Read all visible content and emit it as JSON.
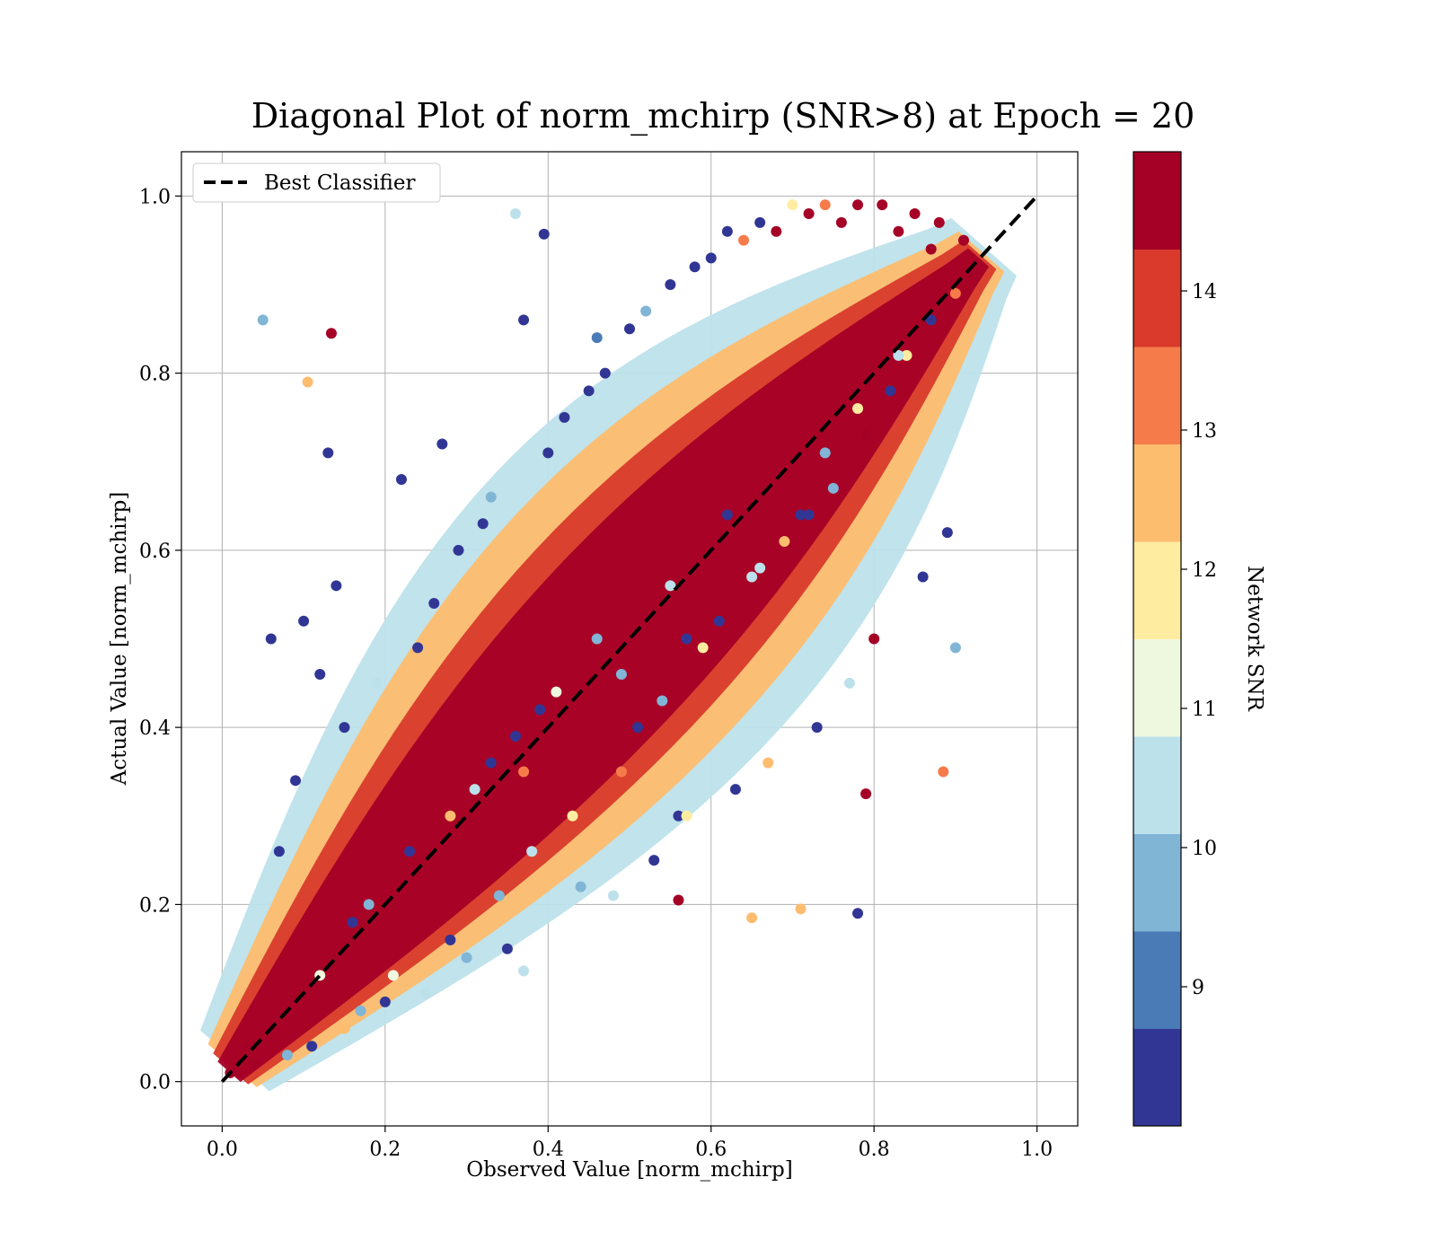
{
  "chart_data": {
    "type": "scatter",
    "title": "Diagonal Plot of norm_mchirp (SNR>8) at Epoch = 20",
    "xlabel": "Observed Value [norm_mchirp]",
    "ylabel": "Actual Value [norm_mchirp]",
    "xlim": [
      -0.05,
      1.05
    ],
    "ylim": [
      -0.05,
      1.05
    ],
    "xticks": [
      "0.0",
      "0.2",
      "0.4",
      "0.6",
      "0.8",
      "1.0"
    ],
    "yticks": [
      "0.0",
      "0.2",
      "0.4",
      "0.6",
      "0.8",
      "1.0"
    ],
    "grid": true,
    "legend": {
      "position": "top-left",
      "entries": [
        "Best Classifier"
      ]
    },
    "reference_line": {
      "name": "Best Classifier",
      "style": "dashed",
      "color": "#000000",
      "x": [
        0,
        1
      ],
      "y": [
        0,
        1
      ]
    },
    "colorbar": {
      "label": "Network SNR",
      "range": [
        8,
        15
      ],
      "ticks": [
        "9",
        "10",
        "11",
        "12",
        "13",
        "14"
      ],
      "bins": [
        {
          "from": 8.0,
          "to": 8.7,
          "color": "#313695"
        },
        {
          "from": 8.7,
          "to": 9.4,
          "color": "#4a7bb7"
        },
        {
          "from": 9.4,
          "to": 10.1,
          "color": "#80b5d6"
        },
        {
          "from": 10.1,
          "to": 10.8,
          "color": "#bde1eb"
        },
        {
          "from": 10.8,
          "to": 11.5,
          "color": "#eef8df"
        },
        {
          "from": 11.5,
          "to": 12.2,
          "color": "#feeca0"
        },
        {
          "from": 12.2,
          "to": 12.9,
          "color": "#fdbd6f"
        },
        {
          "from": 12.9,
          "to": 13.6,
          "color": "#f57c4a"
        },
        {
          "from": 13.6,
          "to": 14.3,
          "color": "#d93a2b"
        },
        {
          "from": 14.3,
          "to": 15.0,
          "color": "#a50026"
        }
      ]
    },
    "series": [
      {
        "x": [
          0.05,
          0.134,
          0.105,
          0.13,
          0.36,
          0.395,
          0.37,
          0.46,
          0.37,
          0.56,
          0.78,
          0.885,
          0.79,
          0.9,
          0.65,
          0.71,
          0.56,
          0.48,
          0.12,
          0.22,
          0.27,
          0.1,
          0.06,
          0.37,
          0.07,
          0.14,
          0.24,
          0.32,
          0.4,
          0.45,
          0.5,
          0.55,
          0.58,
          0.62,
          0.66,
          0.7,
          0.74,
          0.78,
          0.81,
          0.85,
          0.88,
          0.91,
          0.09,
          0.15,
          0.19,
          0.26,
          0.29,
          0.33,
          0.42,
          0.47,
          0.52,
          0.6,
          0.64,
          0.68,
          0.72,
          0.76,
          0.83,
          0.87,
          0.3,
          0.35,
          0.44,
          0.53,
          0.57,
          0.63,
          0.67,
          0.73,
          0.77,
          0.8,
          0.86,
          0.89,
          0.2,
          0.25,
          0.17,
          0.11,
          0.08,
          0.04,
          0.02,
          0.03,
          0.01,
          0.15,
          0.21,
          0.28,
          0.34,
          0.38,
          0.43,
          0.49,
          0.51,
          0.54,
          0.59,
          0.61,
          0.65,
          0.69,
          0.71,
          0.75,
          0.79,
          0.82,
          0.84,
          0.87,
          0.9,
          0.92,
          0.18,
          0.23,
          0.31,
          0.36,
          0.41,
          0.46,
          0.39,
          0.55,
          0.62,
          0.74,
          0.78,
          0.83,
          0.28,
          0.33,
          0.12,
          0.16,
          0.72,
          0.66,
          0.57,
          0.49
        ],
        "y": [
          0.86,
          0.845,
          0.79,
          0.71,
          0.98,
          0.957,
          0.86,
          0.84,
          0.125,
          0.205,
          0.19,
          0.35,
          0.325,
          0.49,
          0.185,
          0.195,
          0.3,
          0.21,
          0.46,
          0.68,
          0.72,
          0.52,
          0.5,
          0.35,
          0.26,
          0.56,
          0.49,
          0.63,
          0.71,
          0.78,
          0.85,
          0.9,
          0.92,
          0.96,
          0.97,
          0.99,
          0.99,
          0.99,
          0.99,
          0.98,
          0.97,
          0.95,
          0.34,
          0.4,
          0.45,
          0.54,
          0.6,
          0.66,
          0.75,
          0.8,
          0.87,
          0.93,
          0.95,
          0.96,
          0.98,
          0.97,
          0.96,
          0.94,
          0.14,
          0.15,
          0.22,
          0.25,
          0.3,
          0.33,
          0.36,
          0.4,
          0.45,
          0.5,
          0.57,
          0.62,
          0.09,
          0.1,
          0.08,
          0.04,
          0.03,
          0.02,
          0.01,
          0.04,
          0.01,
          0.06,
          0.12,
          0.16,
          0.21,
          0.26,
          0.3,
          0.35,
          0.4,
          0.43,
          0.49,
          0.52,
          0.57,
          0.61,
          0.64,
          0.67,
          0.73,
          0.78,
          0.82,
          0.86,
          0.89,
          0.91,
          0.2,
          0.26,
          0.33,
          0.39,
          0.44,
          0.5,
          0.42,
          0.56,
          0.64,
          0.71,
          0.76,
          0.82,
          0.3,
          0.36,
          0.12,
          0.18,
          0.64,
          0.58,
          0.5,
          0.46
        ],
        "snr": [
          9.5,
          14.8,
          12.5,
          8.3,
          10.5,
          8.3,
          8.3,
          9.2,
          10.2,
          14.8,
          8.6,
          13.5,
          14.8,
          9.8,
          12.6,
          12.6,
          8.4,
          10.5,
          8.4,
          8.4,
          8.6,
          8.3,
          8.4,
          13.5,
          8.4,
          8.4,
          8.4,
          8.4,
          8.4,
          8.4,
          8.4,
          8.4,
          8.4,
          8.4,
          8.4,
          12.0,
          13.0,
          14.8,
          14.8,
          14.8,
          14.8,
          14.8,
          8.4,
          8.4,
          10.5,
          8.4,
          8.4,
          9.5,
          8.4,
          8.4,
          9.5,
          8.4,
          13.0,
          14.8,
          14.8,
          14.8,
          14.8,
          14.8,
          9.5,
          8.4,
          9.5,
          8.4,
          11.5,
          8.4,
          12.6,
          8.4,
          10.5,
          14.8,
          8.4,
          8.4,
          8.4,
          10.5,
          9.5,
          8.4,
          9.5,
          14.8,
          14.8,
          14.8,
          14.8,
          12.5,
          11.0,
          8.4,
          9.5,
          10.5,
          12.0,
          13.0,
          8.4,
          9.5,
          11.5,
          8.4,
          10.5,
          12.6,
          8.4,
          9.5,
          14.8,
          8.4,
          12.0,
          8.4,
          13.5,
          14.8,
          9.5,
          8.4,
          10.5,
          8.4,
          11.0,
          9.5,
          8.4,
          10.5,
          8.4,
          9.5,
          12.0,
          10.5,
          12.5,
          8.4,
          11.0,
          8.4,
          8.4,
          10.5,
          8.4,
          9.5
        ]
      }
    ]
  }
}
